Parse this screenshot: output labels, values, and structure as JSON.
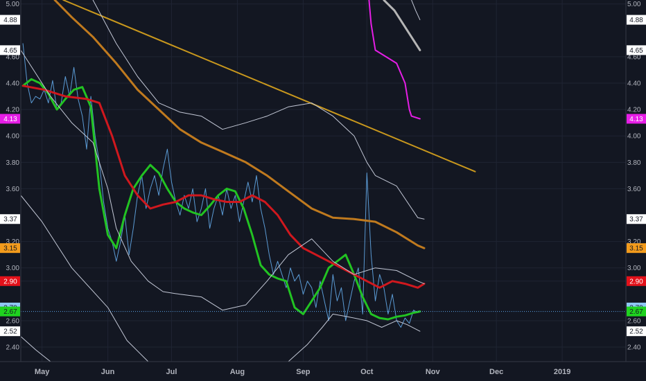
{
  "chart_data": {
    "type": "line",
    "xlim": [
      "2018-04-21",
      "2019-01-31"
    ],
    "ylim": [
      2.29,
      5.03
    ],
    "grid": true,
    "colors": {
      "background": "#131722",
      "grid": "#1f2433",
      "price": "#5b9bd5",
      "green_ma": "#22c322",
      "red_ma": "#d0181e",
      "orange_ma": "#c07a1e",
      "trendline": "#c9981d",
      "bands": "#c3c8d6",
      "magenta": "#e61ee6",
      "silver": "#b5b5b5",
      "last_line": "#5ba3e8"
    },
    "x_ticks": [
      {
        "date": "2018-05-01",
        "label": "May"
      },
      {
        "date": "2018-06-01",
        "label": "Jun"
      },
      {
        "date": "2018-07-01",
        "label": "Jul"
      },
      {
        "date": "2018-08-01",
        "label": "Aug"
      },
      {
        "date": "2018-09-01",
        "label": "Sep"
      },
      {
        "date": "2018-10-01",
        "label": "Oct"
      },
      {
        "date": "2018-11-01",
        "label": "Nov"
      },
      {
        "date": "2018-12-01",
        "label": "Dec"
      },
      {
        "date": "2019-01-01",
        "label": "2019"
      }
    ],
    "y_ticks": [
      {
        "value": 5.0,
        "label": "5.00"
      },
      {
        "value": 4.6,
        "label": "4.60"
      },
      {
        "value": 4.4,
        "label": "4.40"
      },
      {
        "value": 4.2,
        "label": "4.20"
      },
      {
        "value": 4.0,
        "label": "4.00"
      },
      {
        "value": 3.8,
        "label": "3.80"
      },
      {
        "value": 3.6,
        "label": "3.60"
      },
      {
        "value": 3.2,
        "label": "3.20"
      },
      {
        "value": 3.0,
        "label": "3.00"
      },
      {
        "value": 2.9,
        "label": "2.90"
      },
      {
        "value": 2.6,
        "label": "2.60"
      },
      {
        "value": 2.4,
        "label": "2.40"
      }
    ],
    "price_tags": [
      {
        "value": 4.88,
        "label": "4.88",
        "bg": "#ffffff",
        "fg": "#131722"
      },
      {
        "value": 4.65,
        "label": "4.65",
        "bg": "#ffffff",
        "fg": "#131722"
      },
      {
        "value": 4.13,
        "label": "4.13",
        "bg": "#e61ee6",
        "fg": "#ffffff"
      },
      {
        "value": 3.37,
        "label": "3.37",
        "bg": "#ffffff",
        "fg": "#131722"
      },
      {
        "value": 3.15,
        "label": "3.15",
        "bg": "#f39b1c",
        "fg": "#131722"
      },
      {
        "value": 2.9,
        "label": "2.90",
        "bg": "#e3111a",
        "fg": "#ffffff"
      },
      {
        "value": 2.7,
        "label": "2.70",
        "bg": "#8fc7f3",
        "fg": "#131722"
      },
      {
        "value": 2.67,
        "label": "2.67",
        "bg": "#1fd31f",
        "fg": "#131722"
      },
      {
        "value": 2.52,
        "label": "2.52",
        "bg": "#ffffff",
        "fg": "#131722"
      }
    ],
    "last_price": 2.67,
    "series": [
      {
        "key": "price",
        "width": 1,
        "x": [
          "2018-04-22",
          "2018-04-24",
          "2018-04-26",
          "2018-04-28",
          "2018-04-30",
          "2018-05-02",
          "2018-05-04",
          "2018-05-06",
          "2018-05-08",
          "2018-05-10",
          "2018-05-12",
          "2018-05-14",
          "2018-05-16",
          "2018-05-18",
          "2018-05-20",
          "2018-05-22",
          "2018-05-24",
          "2018-05-26",
          "2018-05-28",
          "2018-05-30",
          "2018-06-01",
          "2018-06-03",
          "2018-06-05",
          "2018-06-07",
          "2018-06-09",
          "2018-06-11",
          "2018-06-13",
          "2018-06-15",
          "2018-06-17",
          "2018-06-19",
          "2018-06-21",
          "2018-06-23",
          "2018-06-25",
          "2018-06-27",
          "2018-06-29",
          "2018-07-01",
          "2018-07-03",
          "2018-07-05",
          "2018-07-07",
          "2018-07-09",
          "2018-07-11",
          "2018-07-13",
          "2018-07-15",
          "2018-07-17",
          "2018-07-19",
          "2018-07-21",
          "2018-07-23",
          "2018-07-25",
          "2018-07-27",
          "2018-07-29",
          "2018-07-31",
          "2018-08-02",
          "2018-08-04",
          "2018-08-06",
          "2018-08-08",
          "2018-08-10",
          "2018-08-12",
          "2018-08-14",
          "2018-08-16",
          "2018-08-18",
          "2018-08-20",
          "2018-08-22",
          "2018-08-24",
          "2018-08-26",
          "2018-08-28",
          "2018-08-30",
          "2018-09-01",
          "2018-09-03",
          "2018-09-05",
          "2018-09-07",
          "2018-09-09",
          "2018-09-11",
          "2018-09-13",
          "2018-09-15",
          "2018-09-17",
          "2018-09-19",
          "2018-09-21",
          "2018-09-23",
          "2018-09-25",
          "2018-09-27",
          "2018-09-29",
          "2018-10-01",
          "2018-10-03",
          "2018-10-05",
          "2018-10-07",
          "2018-10-09",
          "2018-10-11",
          "2018-10-13",
          "2018-10-15",
          "2018-10-17",
          "2018-10-19",
          "2018-10-21",
          "2018-10-23",
          "2018-10-25",
          "2018-10-26"
        ],
        "y": [
          4.7,
          4.4,
          4.25,
          4.3,
          4.28,
          4.35,
          4.25,
          4.42,
          4.2,
          4.25,
          4.45,
          4.3,
          4.52,
          4.28,
          4.15,
          3.9,
          4.3,
          4.0,
          3.8,
          3.5,
          3.3,
          3.2,
          3.05,
          3.2,
          3.4,
          3.1,
          3.3,
          3.55,
          3.7,
          3.45,
          3.6,
          3.7,
          3.55,
          3.75,
          3.9,
          3.65,
          3.5,
          3.4,
          3.55,
          3.45,
          3.6,
          3.35,
          3.45,
          3.6,
          3.3,
          3.45,
          3.55,
          3.4,
          3.6,
          3.45,
          3.55,
          3.35,
          3.5,
          3.65,
          3.5,
          3.7,
          3.45,
          3.3,
          3.1,
          2.95,
          3.05,
          2.95,
          2.85,
          3.0,
          2.9,
          2.95,
          2.8,
          2.9,
          2.85,
          2.7,
          2.9,
          2.75,
          2.6,
          2.95,
          2.75,
          2.85,
          2.6,
          2.75,
          2.9,
          3.0,
          2.65,
          3.72,
          3.1,
          2.75,
          2.95,
          2.85,
          2.65,
          2.8,
          2.6,
          2.55,
          2.62,
          2.58,
          2.68,
          2.66,
          2.67
        ]
      },
      {
        "key": "green_ma",
        "width": 3,
        "x": [
          "2018-04-22",
          "2018-04-26",
          "2018-04-30",
          "2018-05-04",
          "2018-05-08",
          "2018-05-12",
          "2018-05-16",
          "2018-05-20",
          "2018-05-24",
          "2018-05-28",
          "2018-06-01",
          "2018-06-05",
          "2018-06-09",
          "2018-06-13",
          "2018-06-17",
          "2018-06-21",
          "2018-06-25",
          "2018-06-29",
          "2018-07-03",
          "2018-07-07",
          "2018-07-11",
          "2018-07-15",
          "2018-07-19",
          "2018-07-23",
          "2018-07-27",
          "2018-07-31",
          "2018-08-04",
          "2018-08-08",
          "2018-08-12",
          "2018-08-16",
          "2018-08-20",
          "2018-08-24",
          "2018-08-28",
          "2018-09-01",
          "2018-09-05",
          "2018-09-09",
          "2018-09-13",
          "2018-09-17",
          "2018-09-21",
          "2018-09-25",
          "2018-09-29",
          "2018-10-03",
          "2018-10-07",
          "2018-10-11",
          "2018-10-15",
          "2018-10-19",
          "2018-10-23",
          "2018-10-26"
        ],
        "y": [
          4.38,
          4.43,
          4.4,
          4.32,
          4.2,
          4.28,
          4.35,
          4.37,
          4.22,
          3.6,
          3.25,
          3.15,
          3.4,
          3.6,
          3.7,
          3.78,
          3.72,
          3.6,
          3.5,
          3.45,
          3.42,
          3.4,
          3.47,
          3.55,
          3.6,
          3.58,
          3.45,
          3.25,
          3.02,
          2.95,
          2.92,
          2.9,
          2.7,
          2.65,
          2.75,
          2.85,
          3.0,
          3.05,
          3.1,
          2.95,
          2.78,
          2.65,
          2.62,
          2.61,
          2.63,
          2.64,
          2.66,
          2.67
        ]
      },
      {
        "key": "red_ma",
        "width": 3,
        "x": [
          "2018-04-22",
          "2018-05-02",
          "2018-05-12",
          "2018-05-22",
          "2018-05-28",
          "2018-06-03",
          "2018-06-09",
          "2018-06-15",
          "2018-06-21",
          "2018-06-27",
          "2018-07-03",
          "2018-07-09",
          "2018-07-15",
          "2018-07-21",
          "2018-07-27",
          "2018-08-02",
          "2018-08-08",
          "2018-08-14",
          "2018-08-20",
          "2018-08-26",
          "2018-09-01",
          "2018-09-07",
          "2018-09-13",
          "2018-09-19",
          "2018-09-25",
          "2018-10-01",
          "2018-10-07",
          "2018-10-13",
          "2018-10-19",
          "2018-10-25",
          "2018-10-28"
        ],
        "y": [
          4.38,
          4.35,
          4.3,
          4.28,
          4.25,
          4.0,
          3.7,
          3.55,
          3.45,
          3.48,
          3.5,
          3.55,
          3.55,
          3.52,
          3.5,
          3.5,
          3.55,
          3.5,
          3.4,
          3.25,
          3.15,
          3.1,
          3.05,
          3.0,
          2.95,
          2.9,
          2.85,
          2.9,
          2.88,
          2.85,
          2.88
        ]
      },
      {
        "key": "orange_ma",
        "width": 3,
        "x": [
          "2018-05-07",
          "2018-05-15",
          "2018-05-25",
          "2018-06-05",
          "2018-06-15",
          "2018-06-25",
          "2018-07-05",
          "2018-07-15",
          "2018-07-25",
          "2018-08-05",
          "2018-08-15",
          "2018-08-25",
          "2018-09-05",
          "2018-09-15",
          "2018-09-25",
          "2018-10-05",
          "2018-10-15",
          "2018-10-25",
          "2018-10-28"
        ],
        "y": [
          5.03,
          4.9,
          4.75,
          4.55,
          4.35,
          4.2,
          4.05,
          3.95,
          3.88,
          3.8,
          3.7,
          3.58,
          3.45,
          3.38,
          3.37,
          3.35,
          3.27,
          3.17,
          3.15
        ]
      },
      {
        "key": "trendline",
        "width": 2,
        "x": [
          "2018-05-11",
          "2018-11-21"
        ],
        "y": [
          5.03,
          3.73
        ]
      },
      {
        "key": "bands",
        "width": 1,
        "x": [
          "2018-05-25",
          "2018-06-05",
          "2018-06-15",
          "2018-06-25",
          "2018-07-05",
          "2018-07-15",
          "2018-07-25",
          "2018-08-05",
          "2018-08-15",
          "2018-08-25",
          "2018-09-05",
          "2018-09-15",
          "2018-09-25",
          "2018-10-01",
          "2018-10-05",
          "2018-10-15",
          "2018-10-25",
          "2018-10-28"
        ],
        "y": [
          5.03,
          4.7,
          4.45,
          4.25,
          4.18,
          4.15,
          4.05,
          4.1,
          4.15,
          4.22,
          4.25,
          4.15,
          4.0,
          3.8,
          3.7,
          3.62,
          3.38,
          3.37
        ]
      },
      {
        "key": "bands",
        "width": 1,
        "x": [
          "2018-04-21",
          "2018-05-05",
          "2018-05-15",
          "2018-05-25",
          "2018-06-01",
          "2018-06-05",
          "2018-06-12",
          "2018-06-20",
          "2018-06-27",
          "2018-07-05",
          "2018-07-15",
          "2018-07-25",
          "2018-08-05",
          "2018-08-15",
          "2018-08-25",
          "2018-09-05",
          "2018-09-15",
          "2018-09-25",
          "2018-10-01",
          "2018-10-05",
          "2018-10-15",
          "2018-10-25",
          "2018-10-28"
        ],
        "y": [
          4.65,
          4.3,
          4.1,
          3.95,
          3.6,
          3.3,
          3.05,
          2.9,
          2.82,
          2.8,
          2.78,
          2.68,
          2.72,
          2.9,
          3.1,
          3.22,
          3.05,
          2.95,
          2.98,
          3.0,
          2.98,
          2.9,
          2.88
        ]
      },
      {
        "key": "bands",
        "width": 1,
        "x": [
          "2018-04-21",
          "2018-05-01",
          "2018-05-15",
          "2018-06-01",
          "2018-06-10",
          "2018-06-20"
        ],
        "y": [
          3.55,
          3.35,
          3.0,
          2.7,
          2.45,
          2.29
        ]
      },
      {
        "key": "bands",
        "width": 1,
        "x": [
          "2018-04-21",
          "2018-04-28",
          "2018-05-05"
        ],
        "y": [
          2.48,
          2.38,
          2.29
        ]
      },
      {
        "key": "bands",
        "width": 1,
        "x": [
          "2018-08-25",
          "2018-09-03",
          "2018-09-10",
          "2018-09-15",
          "2018-09-22",
          "2018-10-01",
          "2018-10-08",
          "2018-10-15",
          "2018-10-20",
          "2018-10-26"
        ],
        "y": [
          2.29,
          2.42,
          2.55,
          2.65,
          2.63,
          2.6,
          2.55,
          2.6,
          2.57,
          2.52
        ]
      },
      {
        "key": "magenta",
        "width": 2,
        "x": [
          "2018-10-02",
          "2018-10-03",
          "2018-10-05",
          "2018-10-10",
          "2018-10-15",
          "2018-10-19",
          "2018-10-21",
          "2018-10-22",
          "2018-10-26"
        ],
        "y": [
          5.03,
          4.85,
          4.65,
          4.6,
          4.55,
          4.4,
          4.2,
          4.15,
          4.13
        ]
      },
      {
        "key": "silver",
        "width": 3,
        "x": [
          "2018-10-09",
          "2018-10-14",
          "2018-10-26"
        ],
        "y": [
          5.03,
          4.95,
          4.65
        ]
      },
      {
        "key": "bands",
        "width": 1,
        "x": [
          "2018-10-22",
          "2018-10-24",
          "2018-10-26"
        ],
        "y": [
          5.03,
          4.95,
          4.88
        ]
      }
    ]
  }
}
